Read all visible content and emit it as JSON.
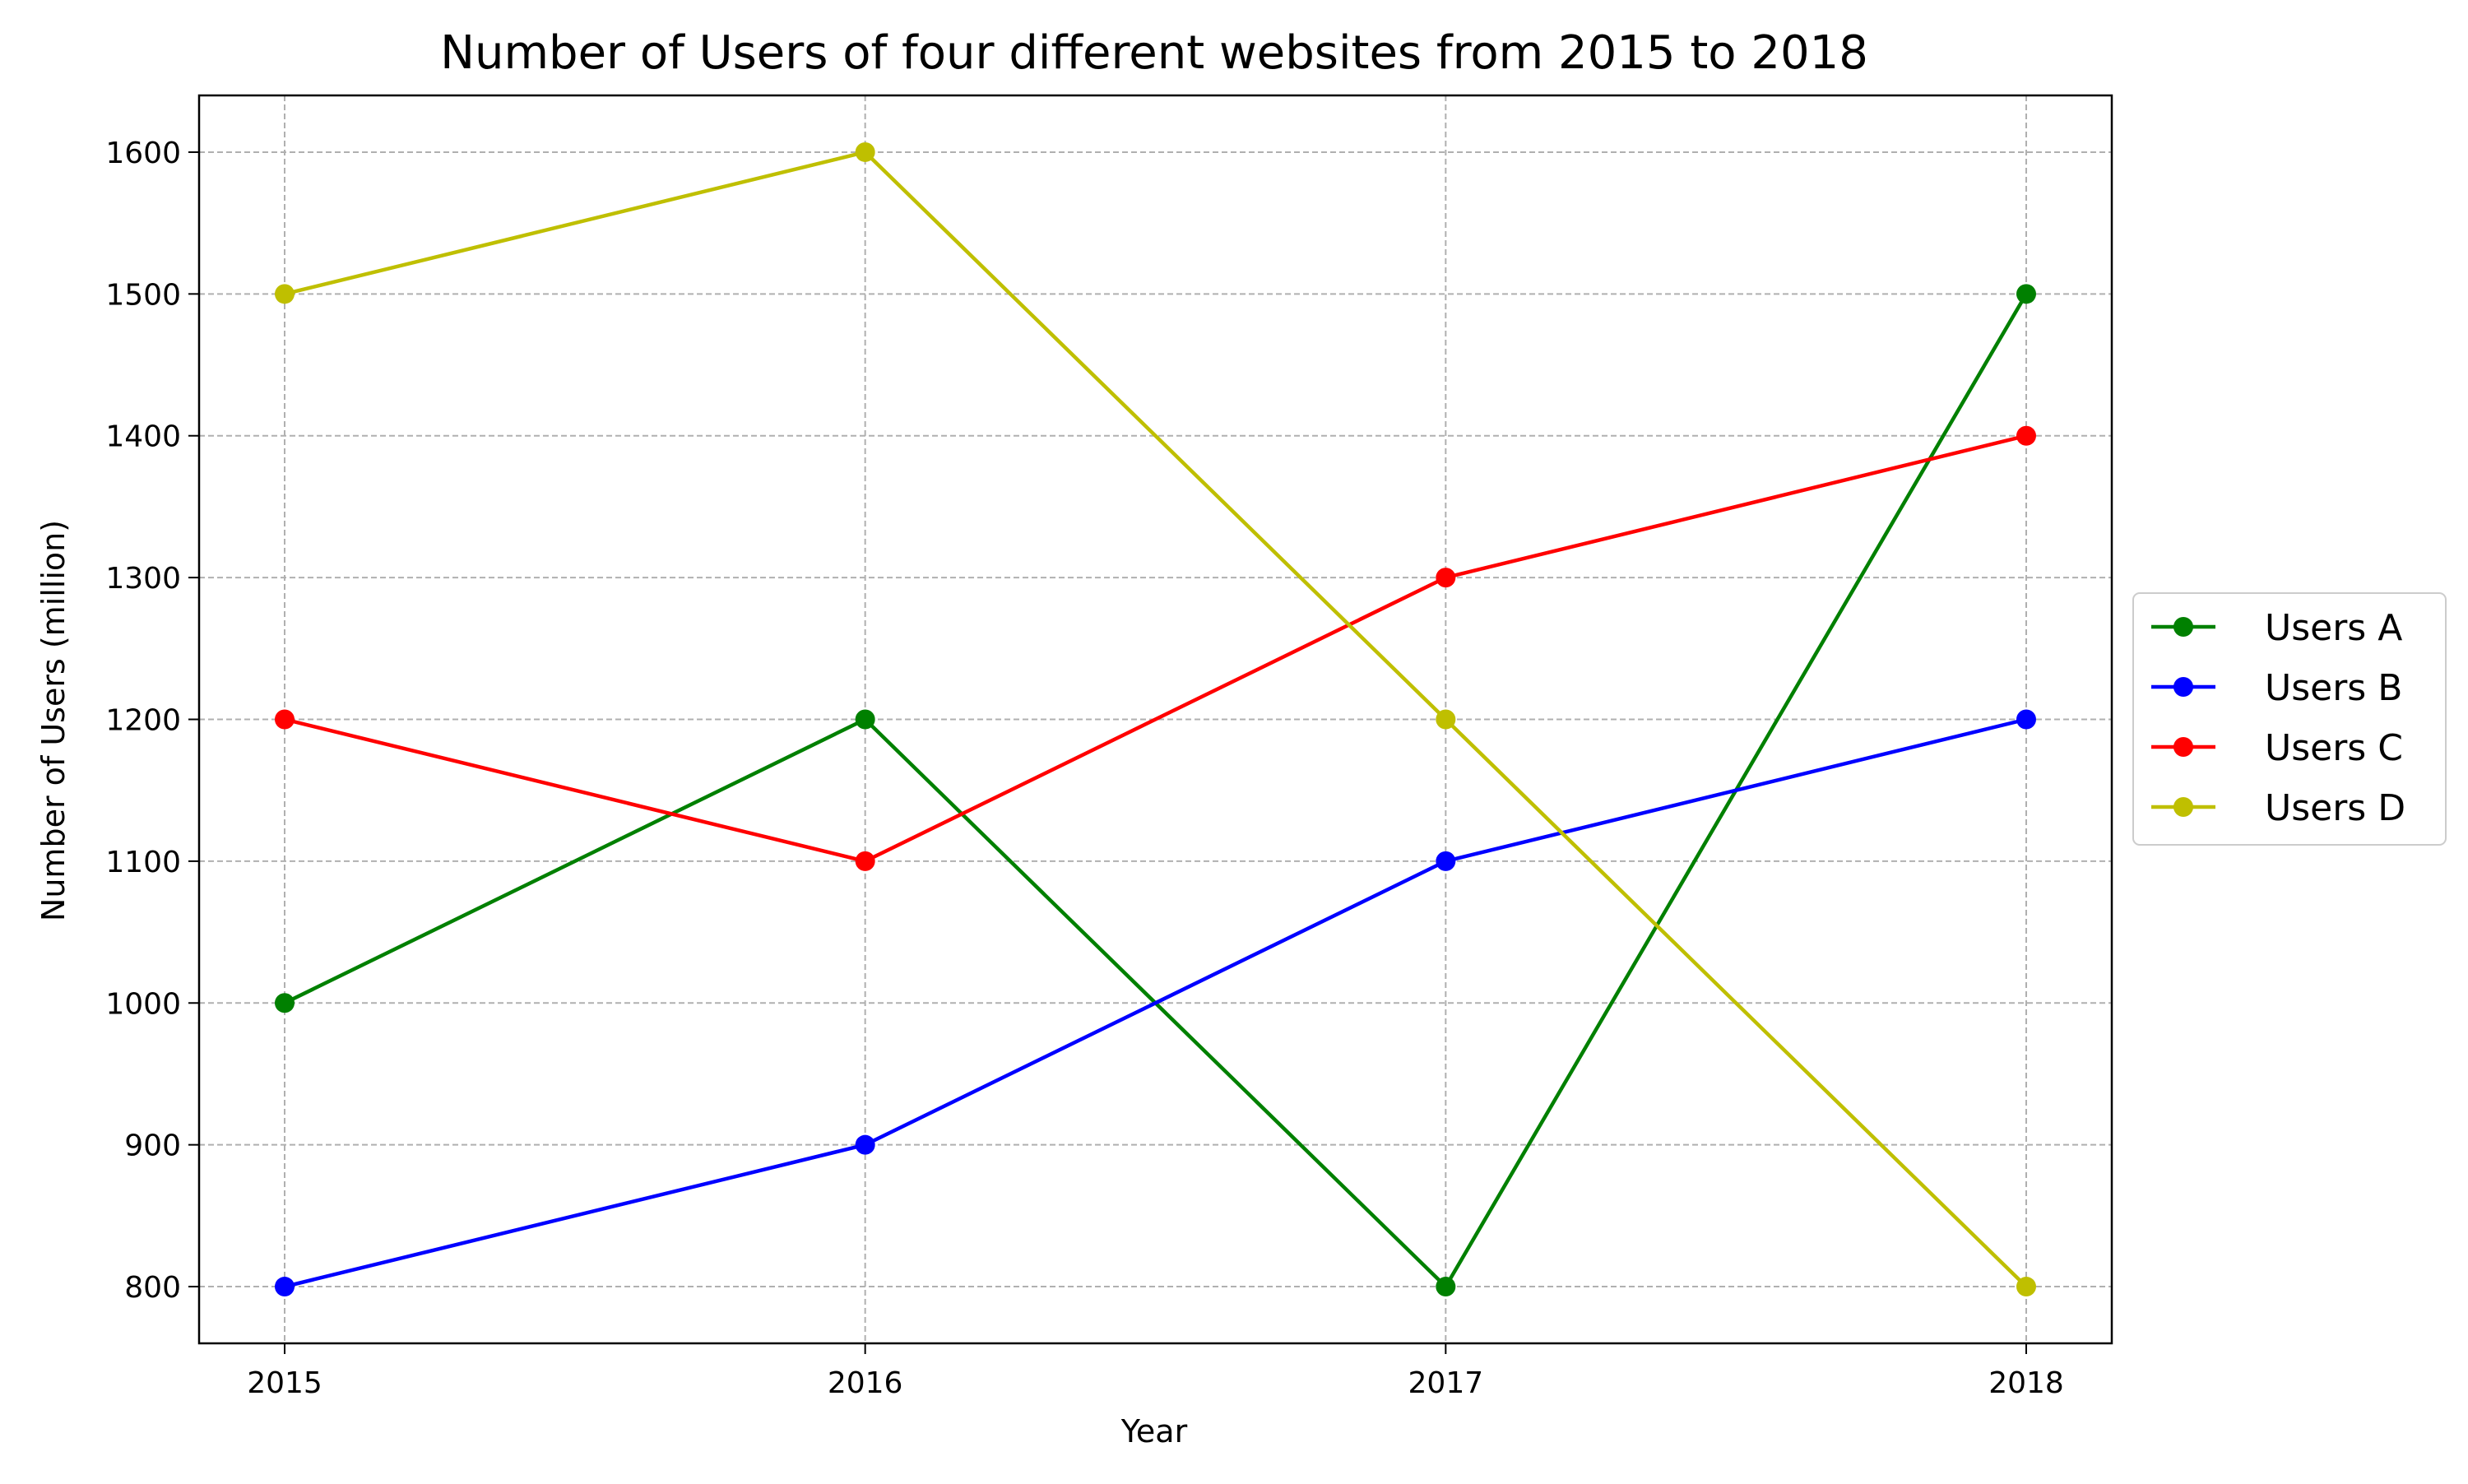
{
  "chart_data": {
    "type": "line",
    "title": "Number of Users of four different websites from 2015 to 2018",
    "xlabel": "Year",
    "ylabel": "Number of Users (million)",
    "x": [
      "2015",
      "2016",
      "2017",
      "2018"
    ],
    "y_ticks": [
      "800",
      "900",
      "1000",
      "1100",
      "1200",
      "1300",
      "1400",
      "1500",
      "1600"
    ],
    "ylim": [
      760,
      1640
    ],
    "grid": true,
    "grid_style": "dashed",
    "legend_position": "right",
    "series": [
      {
        "name": "Users A",
        "color": "#008000",
        "values": [
          1000,
          1200,
          800,
          1500
        ]
      },
      {
        "name": "Users B",
        "color": "#0000ff",
        "values": [
          800,
          900,
          1100,
          1200
        ]
      },
      {
        "name": "Users C",
        "color": "#ff0000",
        "values": [
          1200,
          1100,
          1300,
          1400
        ]
      },
      {
        "name": "Users D",
        "color": "#bfbf00",
        "values": [
          1500,
          1600,
          1200,
          800
        ]
      }
    ]
  }
}
